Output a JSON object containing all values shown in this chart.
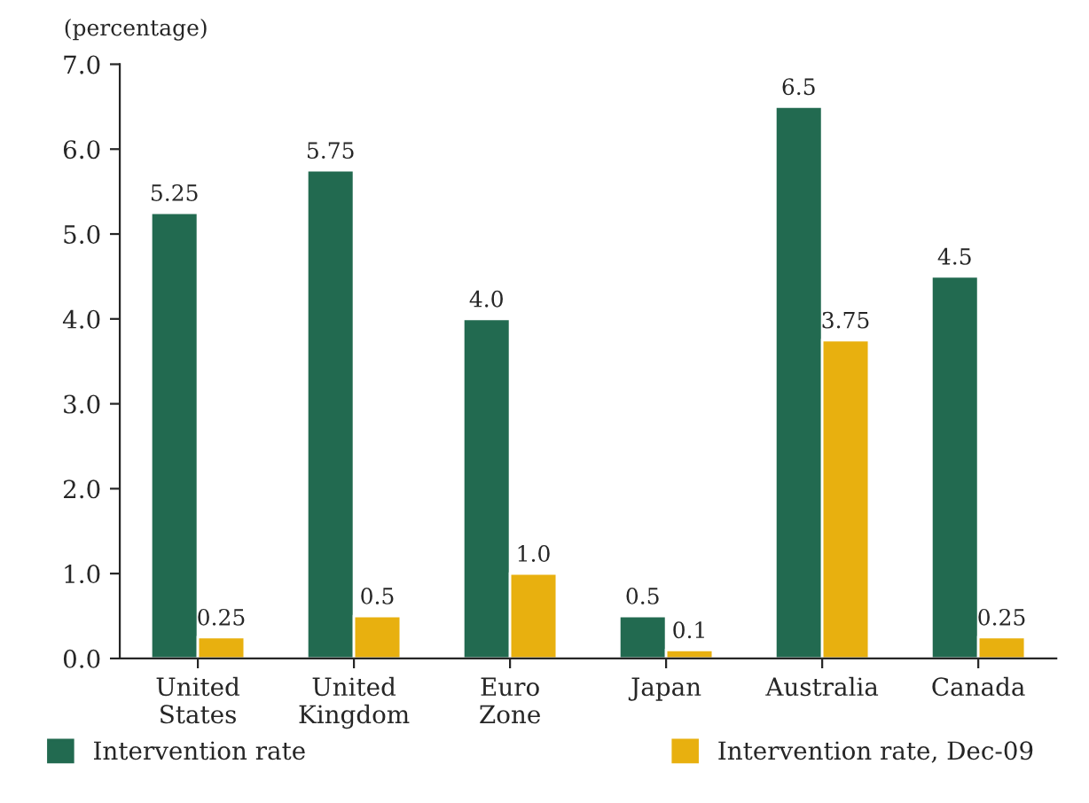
{
  "chart_data": {
    "type": "bar",
    "ylabel": "(percentage)",
    "categories": [
      "United\nStates",
      "United\nKingdom",
      "Euro\nZone",
      "Japan",
      "Australia",
      "Canada"
    ],
    "series": [
      {
        "name": "Intervention rate",
        "color": "#226a50",
        "values": [
          5.25,
          5.75,
          4.0,
          0.5,
          6.5,
          4.5
        ],
        "value_labels": [
          "5.25",
          "5.75",
          "4.0",
          "0.5",
          "6.5",
          "4.5"
        ]
      },
      {
        "name": "Intervention rate, Dec-09",
        "color": "#e8b00f",
        "values": [
          0.25,
          0.5,
          1.0,
          0.1,
          3.75,
          0.25
        ],
        "value_labels": [
          "0.25",
          "0.5",
          "1.0",
          "0.1",
          "3.75",
          "0.25"
        ]
      }
    ],
    "ylim": [
      0,
      7
    ],
    "yticks": [
      {
        "value": 0,
        "label": "0.0"
      },
      {
        "value": 1,
        "label": "1.0"
      },
      {
        "value": 2,
        "label": "2.0"
      },
      {
        "value": 3,
        "label": "3.0"
      },
      {
        "value": 4,
        "label": "4.0"
      },
      {
        "value": 5,
        "label": "5.0"
      },
      {
        "value": 6,
        "label": "6.0"
      },
      {
        "value": 7,
        "label": "7.0"
      }
    ],
    "grid": false,
    "legend": "bottom"
  }
}
